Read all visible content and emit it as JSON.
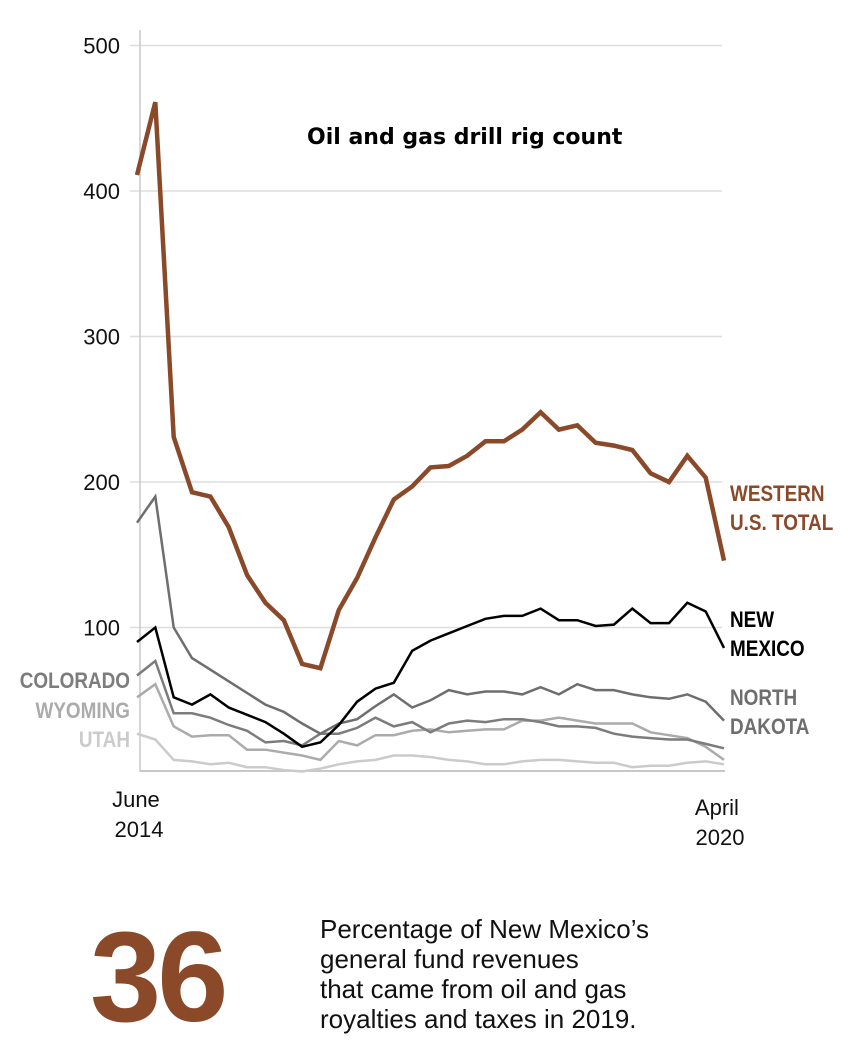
{
  "chart_data": {
    "type": "line",
    "title": "Oil and gas drill rig count",
    "xlabel": "",
    "ylabel": "",
    "ylim": [
      0,
      500
    ],
    "yticks": [
      100,
      200,
      300,
      400,
      500
    ],
    "ytick_labels": [
      "100",
      "200",
      "300",
      "400",
      "500"
    ],
    "grid": true,
    "x_start_label": [
      "June",
      "2014"
    ],
    "x_end_label": [
      "April",
      "2020"
    ],
    "n_points": 33,
    "series": [
      {
        "name": "WESTERN U.S. TOTAL",
        "label_lines": [
          "WESTERN",
          "U.S. TOTAL"
        ],
        "color": "#8a4a2a",
        "values": [
          411,
          461,
          231,
          193,
          190,
          169,
          136,
          117,
          105,
          75,
          72,
          112,
          134,
          162,
          188,
          197,
          210,
          211,
          218,
          228,
          228,
          236,
          248,
          236,
          239,
          227,
          225,
          222,
          206,
          200,
          218,
          203,
          146
        ]
      },
      {
        "name": "NEW MEXICO",
        "label_lines": [
          "NEW",
          "MEXICO"
        ],
        "color": "#000000",
        "values": [
          90,
          100,
          52,
          47,
          54,
          45,
          40,
          35,
          27,
          18,
          21,
          33,
          49,
          58,
          62,
          84,
          91,
          96,
          101,
          106,
          108,
          108,
          113,
          105,
          105,
          101,
          102,
          113,
          103,
          103,
          117,
          111,
          86
        ]
      },
      {
        "name": "NORTH DAKOTA",
        "label_lines": [
          "NORTH",
          "DAKOTA"
        ],
        "color": "#6e6e6e",
        "values": [
          172,
          190,
          100,
          79,
          71,
          63,
          55,
          47,
          42,
          34,
          27,
          34,
          37,
          46,
          54,
          45,
          50,
          57,
          54,
          56,
          56,
          54,
          59,
          54,
          61,
          57,
          57,
          54,
          52,
          51,
          54,
          49,
          36
        ]
      },
      {
        "name": "COLORADO",
        "label_lines": [
          "COLORADO"
        ],
        "color": "#7c7c7c",
        "values": [
          67,
          77,
          41,
          41,
          38,
          33,
          29,
          21,
          22,
          19,
          27,
          27,
          31,
          38,
          32,
          35,
          28,
          34,
          36,
          35,
          37,
          37,
          35,
          32,
          32,
          31,
          27,
          25,
          24,
          23,
          23,
          20,
          17
        ]
      },
      {
        "name": "WYOMING",
        "label_lines": [
          "WYOMING"
        ],
        "color": "#ababab",
        "values": [
          52,
          61,
          32,
          25,
          26,
          26,
          16,
          16,
          14,
          12,
          9,
          22,
          19,
          26,
          26,
          29,
          30,
          28,
          29,
          30,
          30,
          36,
          36,
          38,
          36,
          34,
          34,
          34,
          28,
          26,
          24,
          18,
          9
        ]
      },
      {
        "name": "UTAH",
        "label_lines": [
          "UTAH"
        ],
        "color": "#cbcbcb",
        "values": [
          27,
          23,
          9,
          8,
          6,
          7,
          4,
          4,
          2,
          1,
          3,
          6,
          8,
          9,
          12,
          12,
          11,
          9,
          8,
          6,
          6,
          8,
          9,
          9,
          8,
          7,
          7,
          4,
          5,
          5,
          7,
          8,
          6
        ]
      }
    ]
  },
  "stat": {
    "number": "36",
    "number_color": "#8a4a2a",
    "text_lines": [
      "Percentage of New Mexico’s",
      "general fund revenues",
      "that came from oil and gas",
      "royalties and taxes in 2019."
    ]
  }
}
